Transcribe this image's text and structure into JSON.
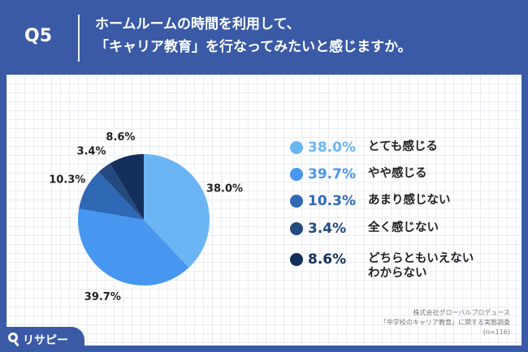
{
  "header": {
    "question_number": "Q5",
    "question_line1": "ホームルームの時間を利用して、",
    "question_line2": "「キャリア教育」を行なってみたいと感じますか。"
  },
  "chart_data": {
    "type": "pie",
    "categories": [
      "とても感じる",
      "やや感じる",
      "あまり感じない",
      "全く感じない",
      "どちらともいえない\nわからない"
    ],
    "values": [
      38.0,
      39.7,
      10.3,
      3.4,
      8.6
    ],
    "value_labels": [
      "38.0%",
      "39.7%",
      "10.3%",
      "3.4%",
      "8.6%"
    ],
    "colors": [
      "#6bb5f5",
      "#4796f0",
      "#2f68b4",
      "#23497e",
      "#142f5c"
    ],
    "start_angle_deg": 0,
    "direction": "clockwise",
    "legend_position": "right"
  },
  "legend": [
    {
      "pct": "38.0%",
      "label": "とても感じる",
      "color": "#6bb5f5"
    },
    {
      "pct": "39.7%",
      "label": "やや感じる",
      "color": "#4796f0"
    },
    {
      "pct": "10.3%",
      "label": "あまり感じない",
      "color": "#2f68b4"
    },
    {
      "pct": "3.4%",
      "label": "全く感じない",
      "color": "#23497e"
    },
    {
      "pct": "8.6%",
      "label_line1": "どちらともいえない",
      "label_line2": "わからない",
      "color": "#142f5c"
    }
  ],
  "source": {
    "line1": "株式会社グローバルプロデュース",
    "line2": "「中学校のキャリア教育」に関する実態調査",
    "line3": "(n=116)"
  },
  "logo": {
    "text": "リサピー",
    "icon": "search-magnifier-icon"
  },
  "colors": {
    "brand_blue": "#3a5aa6",
    "background": "#ffffff"
  }
}
